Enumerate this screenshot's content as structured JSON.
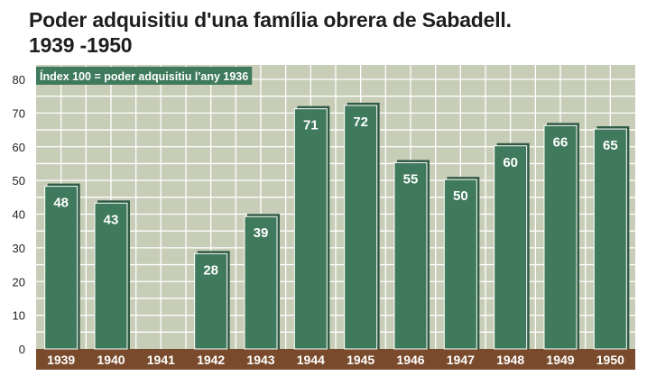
{
  "title_line1": "Poder adquisitiu d'una família obrera de Sabadell.",
  "title_line2": "1939 -1950",
  "colors": {
    "plot_background": "#c8cdb8",
    "grid": "#ffffff",
    "bar": "#3f7a5c",
    "bar_shadow": "#2f5a44",
    "axis_band": "#7a4a2c",
    "note_box": "#3f7a5c"
  },
  "chart_data": {
    "type": "bar",
    "title": "Poder adquisitiu d'una família obrera de Sabadell. 1939 -1950",
    "note": "Índex 100 = poder adquisitiu l'any 1936",
    "categories": [
      "1939",
      "1940",
      "1941",
      "1942",
      "1943",
      "1944",
      "1945",
      "1946",
      "1947",
      "1948",
      "1949",
      "1950"
    ],
    "values": [
      48,
      43,
      null,
      28,
      39,
      71,
      72,
      55,
      50,
      60,
      66,
      65
    ],
    "ylim": [
      0,
      80
    ],
    "yticks": [
      0,
      10,
      20,
      30,
      40,
      50,
      60,
      70,
      80
    ],
    "grid": true
  }
}
